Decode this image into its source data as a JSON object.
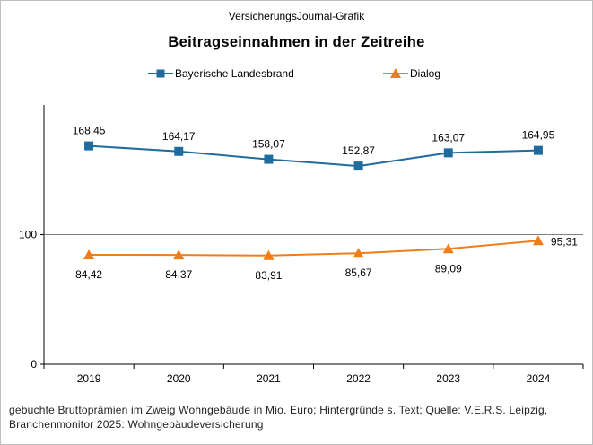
{
  "header": {
    "source": "VersicherungsJournal-Grafik"
  },
  "chart_data": {
    "type": "line",
    "title": "Beitragseinnahmen  in der Zeitreihe",
    "xlabel": "",
    "ylabel": "",
    "categories": [
      "2019",
      "2020",
      "2021",
      "2022",
      "2023",
      "2024"
    ],
    "y_ticks": [
      "0",
      "100"
    ],
    "ylim": [
      0,
      200
    ],
    "grid": "horizontal line at 100 only",
    "legend_position": "top",
    "series": [
      {
        "name": "Bayerische Landesbrand",
        "color": "#1f6b9e",
        "marker": "square",
        "values": [
          168.45,
          164.17,
          158.07,
          152.87,
          163.07,
          164.95
        ],
        "labels": [
          "168,45",
          "164,17",
          "158,07",
          "152,87",
          "163,07",
          "164,95"
        ]
      },
      {
        "name": "Dialog",
        "color": "#ef7d1a",
        "marker": "triangle",
        "values": [
          84.42,
          84.37,
          83.91,
          85.67,
          89.09,
          95.31
        ],
        "labels": [
          "84,42",
          "84,37",
          "83,91",
          "85,67",
          "89,09",
          "95,31"
        ]
      }
    ]
  },
  "footnote": "gebuchte Bruttoprämien im Zweig Wohngebäude  in Mio. Euro; Hintergründe  s. Text; Quelle: V.E.R.S. Leipzig, Branchenmonitor 2025: Wohngebäudeversicherung"
}
